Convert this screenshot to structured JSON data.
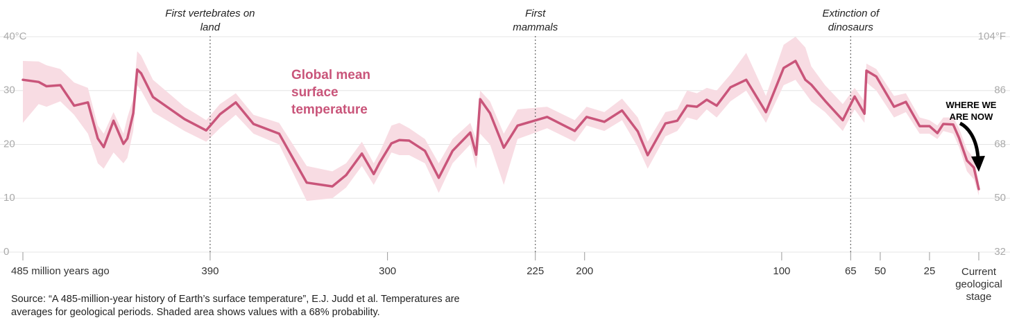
{
  "chart_data": {
    "type": "line",
    "series": [
      {
        "name": "Global mean surface temperature",
        "color": "#c9557a",
        "values": [
          32.0,
          31.6,
          30.8,
          31.0,
          27.2,
          27.8,
          21.1,
          19.5,
          24.4,
          20.1,
          21.1,
          25.8,
          33.9,
          33.2,
          28.8,
          24.7,
          22.6,
          25.6,
          27.8,
          23.8,
          22.0,
          12.9,
          12.2,
          14.3,
          18.3,
          14.5,
          16.6,
          20.2,
          20.8,
          20.7,
          18.8,
          13.8,
          18.8,
          22.2,
          18.1,
          28.4,
          25.8,
          19.4,
          23.5,
          25.1,
          22.5,
          25.1,
          24.2,
          26.3,
          22.4,
          18.0,
          23.9,
          24.4,
          27.2,
          27.0,
          28.3,
          27.2,
          30.6,
          32.0,
          26.0,
          34.2,
          35.5,
          32.0,
          31.1,
          28.1,
          24.5,
          28.9,
          25.7,
          33.7,
          32.6,
          27.0,
          27.9,
          23.4,
          23.4,
          22.1,
          23.8,
          23.7,
          21.2,
          17.0,
          15.7,
          11.7
        ]
      }
    ],
    "x": [
      485,
      477,
      473,
      466,
      459,
      452,
      447,
      444,
      439,
      434,
      432,
      429,
      427,
      425,
      419,
      403,
      392,
      385,
      377,
      368,
      355,
      341,
      328,
      321,
      313,
      307,
      304,
      298,
      294,
      289,
      281,
      274,
      267,
      258,
      255,
      253,
      248,
      241,
      234,
      219,
      205,
      199,
      190,
      181,
      173,
      168,
      159,
      153,
      148,
      143,
      138,
      133,
      126,
      118,
      108,
      99,
      93,
      88,
      85,
      78,
      69,
      63,
      58,
      57,
      52,
      43,
      37,
      30,
      25,
      21,
      18,
      13,
      10,
      6,
      2.5,
      0
    ],
    "band": {
      "color": "#f8dce3",
      "upper": [
        35.5,
        35.4,
        34.7,
        34.0,
        31.5,
        30.5,
        23.5,
        22.0,
        26.0,
        22.0,
        25.0,
        28.5,
        37.3,
        36.5,
        32.0,
        27.0,
        24.5,
        27.5,
        29.5,
        25.5,
        24.0,
        16.0,
        15.0,
        16.5,
        20.5,
        16.5,
        18.5,
        23.5,
        24.0,
        23.0,
        21.0,
        16.5,
        21.0,
        24.0,
        21.0,
        30.0,
        28.0,
        22.0,
        26.5,
        27.0,
        24.5,
        27.0,
        26.0,
        28.5,
        25.0,
        20.5,
        26.0,
        26.5,
        30.0,
        29.5,
        30.5,
        30.0,
        33.0,
        37.0,
        29.0,
        38.5,
        40.0,
        38.0,
        34.5,
        31.0,
        27.5,
        30.5,
        28.0,
        35.0,
        34.0,
        29.0,
        29.5,
        25.0,
        24.5,
        23.5,
        25.0,
        25.0,
        23.0,
        19.0,
        17.5,
        13.0
      ],
      "lower": [
        24.0,
        27.5,
        27.0,
        28.0,
        25.5,
        22.0,
        16.5,
        15.5,
        18.5,
        16.5,
        17.5,
        22.5,
        31.0,
        30.0,
        26.0,
        22.5,
        20.5,
        23.0,
        25.5,
        22.0,
        20.0,
        9.5,
        10.0,
        12.0,
        16.0,
        12.5,
        14.5,
        18.5,
        18.0,
        18.0,
        16.5,
        11.0,
        16.5,
        20.0,
        15.5,
        22.0,
        20.0,
        12.5,
        21.0,
        23.0,
        20.5,
        23.5,
        22.5,
        24.5,
        19.5,
        15.5,
        21.5,
        22.5,
        25.0,
        24.5,
        26.5,
        25.0,
        28.0,
        30.0,
        24.0,
        31.0,
        32.0,
        29.5,
        28.0,
        26.0,
        22.5,
        26.5,
        24.0,
        31.5,
        30.0,
        25.0,
        26.0,
        22.0,
        22.0,
        21.0,
        22.5,
        22.0,
        19.5,
        15.0,
        13.5,
        10.5
      ]
    },
    "xlim": [
      485,
      0
    ],
    "xticks": [
      {
        "value": 485,
        "label": "485 million years ago"
      },
      390,
      300,
      225,
      200,
      100,
      65,
      50,
      25,
      {
        "value": 0,
        "label": "Current geological stage"
      }
    ],
    "ylim": [
      0,
      40
    ],
    "yticks": [
      0,
      10,
      20,
      30,
      {
        "value": 40,
        "label": "40°C"
      }
    ],
    "y2lim": [
      32,
      104
    ],
    "y2ticks": [
      32,
      50,
      68,
      86,
      {
        "value": 104,
        "label": "104°F"
      }
    ],
    "grid": true,
    "annotations": [
      {
        "x": 390,
        "text": "First vertebrates on land"
      },
      {
        "x": 225,
        "text": "First mammals"
      },
      {
        "x": 65,
        "text": "Extinction of dinosaurs"
      }
    ],
    "callout": "WHERE WE ARE NOW",
    "source": "Source: “A 485-million-year history of Earth’s surface temperature”, E.J. Judd et al. Temperatures are averages for geological periods. Shaded area shows values with a 68% probability."
  }
}
